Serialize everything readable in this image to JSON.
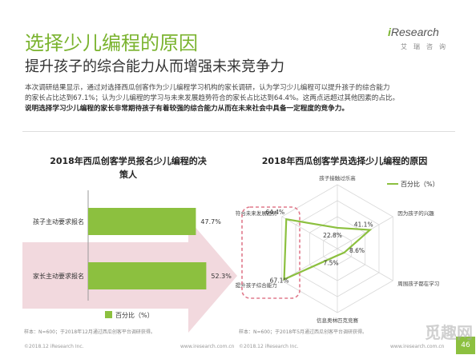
{
  "header": {
    "title": "选择少儿编程的原因",
    "subtitle": "提升孩子的综合能力从而增强未来竞争力",
    "brand_i": "i",
    "brand_name": "Research",
    "brand_sub": "艾瑞咨询"
  },
  "intro": {
    "line1": "本次调研结果显示，通过对选择西瓜创客作为少儿编程学习机构的家长调研，认为学习少儿编程可以提升孩子的综合能力",
    "line2": "的家长占比达到67.1%；认为少儿编程的学习与未来发展趋势符合的家长占比达到64.4%。这两点远超过其他因素的占比。",
    "line3": "说明选择学习少儿编程的家长非常期待孩子有着较强的综合能力从而在未来社会中具备一定程度的竞争力。"
  },
  "left_chart": {
    "title_line1": "2018年西瓜创客学员报名少儿编程的决",
    "title_line2": "策人",
    "note": "样本：N=600；于2018年12月通过西瓜创客平台调研获得。"
  },
  "right_chart": {
    "title": "2018年西瓜创客学员选择少儿编程的原因",
    "note": "样本：N=600；于2018年5月通过西瓜创客平台调研获得。"
  },
  "footer": {
    "left": "©2018.12 iResearch Inc.",
    "mid_left": "www.iresearch.com.cn",
    "mid_right": "©2018.12 iResearch Inc.",
    "right": "www.iresearch.com.cn",
    "page": "46"
  },
  "watermark": "觅趣网",
  "colors": {
    "accent": "#8cc03f",
    "title": "#7ab32e",
    "arrow": "#f0d2d8",
    "dashed": "#e07a8c"
  },
  "chart_data": [
    {
      "type": "bar",
      "orientation": "horizontal",
      "categories": [
        "孩子主动要求报名",
        "家长主动要求报名"
      ],
      "series": [
        {
          "name": "百分比（%）",
          "values": [
            47.7,
            52.3
          ]
        }
      ],
      "value_labels": [
        "47.7%",
        "52.3%"
      ],
      "legend": "bottom",
      "xlim": [
        0,
        55
      ]
    },
    {
      "type": "radar",
      "axes": [
        "孩子接触过乐高",
        "因为孩子的兴趣",
        "周围孩子都在学习",
        "信息奥林匹克竞赛",
        "提升孩子综合能力",
        "符合未来发展趋势"
      ],
      "series": [
        {
          "name": "百分比（%）",
          "values": [
            22.8,
            41.1,
            8.6,
            7.5,
            67.1,
            64.4
          ]
        }
      ],
      "value_labels": [
        "22.8%",
        "41.1%",
        "8.6%",
        "7.5%",
        "67.1%",
        "64.4%"
      ],
      "legend": "top-right",
      "rmax": 70
    }
  ]
}
